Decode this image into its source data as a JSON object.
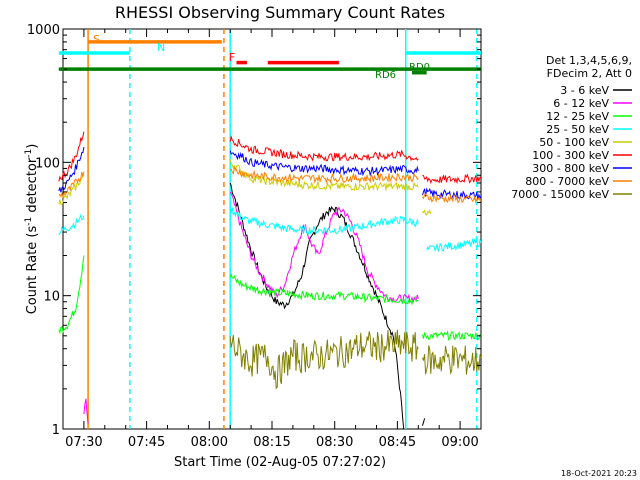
{
  "chart_data": {
    "type": "line",
    "title": "RHESSI Observing Summary Count Rates",
    "xlabel": "Start Time (02-Aug-05 07:27:02)",
    "ylabel_main": "Count Rate (s",
    "ylabel_sup1": "-1",
    "ylabel_mid": " detector",
    "ylabel_sup2": "-1",
    "ylabel_end": ")",
    "ylog": true,
    "ylim": [
      1,
      1000
    ],
    "xlim_min": [
      445,
      545
    ],
    "x_tick_minutes": [
      450,
      465,
      480,
      495,
      510,
      525,
      540
    ],
    "x_tick_labels": [
      "07:30",
      "07:45",
      "08:00",
      "08:15",
      "08:30",
      "08:45",
      "09:00"
    ],
    "y_tick_values": [
      1,
      10,
      100,
      1000
    ],
    "y_tick_labels": [
      "1",
      "10",
      "100",
      "1000"
    ],
    "legend_header": [
      "Det 1,3,4,5,6,9,",
      "FDecim 2, Att 0"
    ],
    "series": [
      {
        "name": "3 - 6 keV",
        "color": "#000000",
        "segments": [
          [
            [
              485,
              70
            ],
            [
              488,
              35
            ],
            [
              490,
              22
            ],
            [
              492,
              15
            ],
            [
              494,
              11
            ],
            [
              496,
              9
            ],
            [
              498,
              8.5
            ],
            [
              500,
              10
            ],
            [
              502,
              14
            ],
            [
              504,
              25
            ],
            [
              506,
              35
            ],
            [
              508,
              42
            ],
            [
              510,
              45
            ],
            [
              512,
              38
            ],
            [
              514,
              28
            ],
            [
              516,
              20
            ],
            [
              518,
              14
            ],
            [
              520,
              10
            ],
            [
              522,
              7
            ],
            [
              524,
              5
            ],
            [
              525,
              3
            ],
            [
              526,
              1.5
            ],
            [
              526.5,
              1
            ]
          ],
          [
            [
              531,
              1
            ],
            [
              531.5,
              1.2
            ]
          ]
        ]
      },
      {
        "name": "6 - 12 keV",
        "color": "#ff00ff",
        "segments": [
          [
            [
              450,
              1.3
            ],
            [
              450.5,
              1.6
            ],
            [
              451,
              1.1
            ]
          ],
          [
            [
              485,
              60
            ],
            [
              488,
              30
            ],
            [
              490,
              20
            ],
            [
              492,
              15
            ],
            [
              494,
              12
            ],
            [
              496,
              10
            ],
            [
              498,
              12
            ],
            [
              500,
              20
            ],
            [
              502,
              30
            ],
            [
              503,
              34
            ],
            [
              504,
              26
            ],
            [
              506,
              20
            ],
            [
              508,
              30
            ],
            [
              510,
              42
            ],
            [
              512,
              44
            ],
            [
              514,
              35
            ],
            [
              516,
              24
            ],
            [
              518,
              15
            ],
            [
              520,
              12
            ],
            [
              522,
              10
            ],
            [
              524,
              9.5
            ],
            [
              526,
              9.5
            ],
            [
              528,
              9.5
            ],
            [
              530,
              9.5
            ]
          ]
        ]
      },
      {
        "name": "12 - 25 keV",
        "color": "#00ff00",
        "segments": [
          [
            [
              444,
              5.5
            ],
            [
              446,
              6
            ],
            [
              448,
              8
            ],
            [
              449,
              12
            ],
            [
              450,
              20
            ]
          ],
          [
            [
              485,
              14
            ],
            [
              488,
              12
            ],
            [
              492,
              11
            ],
            [
              496,
              10.5
            ],
            [
              500,
              10.3
            ],
            [
              504,
              10
            ],
            [
              508,
              10
            ],
            [
              512,
              10
            ],
            [
              516,
              9.8
            ],
            [
              520,
              9.5
            ],
            [
              524,
              9.4
            ],
            [
              528,
              9.2
            ],
            [
              530,
              9.2
            ]
          ],
          [
            [
              531,
              5
            ],
            [
              534,
              5
            ],
            [
              540,
              5
            ],
            [
              545,
              5
            ]
          ]
        ]
      },
      {
        "name": "25 - 50 keV",
        "color": "#00ffff",
        "segments": [
          [
            [
              444,
              30
            ],
            [
              446,
              32
            ],
            [
              448,
              35
            ],
            [
              450,
              40
            ]
          ],
          [
            [
              485,
              45
            ],
            [
              488,
              38
            ],
            [
              490,
              36
            ],
            [
              494,
              34
            ],
            [
              498,
              32
            ],
            [
              502,
              31
            ],
            [
              506,
              31
            ],
            [
              510,
              31
            ],
            [
              514,
              32
            ],
            [
              518,
              34
            ],
            [
              522,
              36
            ],
            [
              526,
              37
            ],
            [
              528,
              36
            ],
            [
              530,
              35
            ]
          ],
          [
            [
              532,
              22
            ],
            [
              535,
              23
            ],
            [
              540,
              24
            ],
            [
              545,
              25
            ]
          ]
        ]
      },
      {
        "name": "50 - 100 keV",
        "color": "#cccc00",
        "segments": [
          [
            [
              444,
              50
            ],
            [
              446,
              55
            ],
            [
              448,
              65
            ],
            [
              450,
              80
            ]
          ],
          [
            [
              485,
              100
            ],
            [
              488,
              85
            ],
            [
              490,
              76
            ],
            [
              494,
              72
            ],
            [
              498,
              70
            ],
            [
              502,
              68
            ],
            [
              506,
              67
            ],
            [
              510,
              66
            ],
            [
              514,
              66
            ],
            [
              518,
              66
            ],
            [
              522,
              66
            ],
            [
              526,
              66
            ],
            [
              528,
              66
            ],
            [
              530,
              65
            ]
          ],
          [
            [
              531,
              42
            ],
            [
              532,
              40
            ],
            [
              533,
              41
            ]
          ]
        ]
      },
      {
        "name": "100 - 300 keV",
        "color": "#ff0000",
        "segments": [
          [
            [
              444,
              75
            ],
            [
              446,
              85
            ],
            [
              448,
              110
            ],
            [
              450,
              170
            ]
          ],
          [
            [
              485,
              150
            ],
            [
              488,
              135
            ],
            [
              490,
              125
            ],
            [
              494,
              120
            ],
            [
              498,
              115
            ],
            [
              502,
              112
            ],
            [
              506,
              110
            ],
            [
              510,
              110
            ],
            [
              514,
              110
            ],
            [
              518,
              110
            ],
            [
              522,
              112
            ],
            [
              526,
              115
            ],
            [
              528,
              110
            ],
            [
              530,
              106
            ]
          ],
          [
            [
              531,
              75
            ],
            [
              534,
              74
            ],
            [
              540,
              75
            ],
            [
              545,
              76
            ]
          ]
        ]
      },
      {
        "name": "300 - 800 keV",
        "color": "#0000ff",
        "segments": [
          [
            [
              444,
              60
            ],
            [
              446,
              70
            ],
            [
              448,
              90
            ],
            [
              450,
              130
            ]
          ],
          [
            [
              485,
              120
            ],
            [
              488,
              110
            ],
            [
              490,
              100
            ],
            [
              494,
              95
            ],
            [
              498,
              92
            ],
            [
              502,
              90
            ],
            [
              506,
              90
            ],
            [
              510,
              88
            ],
            [
              514,
              87
            ],
            [
              518,
              86
            ],
            [
              522,
              87
            ],
            [
              526,
              89
            ],
            [
              528,
              88
            ],
            [
              530,
              86
            ]
          ],
          [
            [
              531,
              60
            ],
            [
              534,
              58
            ],
            [
              540,
              57
            ],
            [
              545,
              56
            ]
          ]
        ]
      },
      {
        "name": "800 - 7000 keV",
        "color": "#ff8000",
        "segments": [
          [
            [
              444,
              55
            ],
            [
              446,
              60
            ],
            [
              448,
              70
            ],
            [
              450,
              85
            ]
          ],
          [
            [
              485,
              90
            ],
            [
              488,
              83
            ],
            [
              490,
              80
            ],
            [
              494,
              78
            ],
            [
              498,
              77
            ],
            [
              502,
              76
            ],
            [
              506,
              76
            ],
            [
              510,
              76
            ],
            [
              514,
              76
            ],
            [
              518,
              76
            ],
            [
              522,
              77
            ],
            [
              526,
              78
            ],
            [
              528,
              77
            ],
            [
              530,
              76
            ]
          ],
          [
            [
              531,
              55
            ],
            [
              534,
              54
            ],
            [
              540,
              53
            ],
            [
              545,
              52
            ]
          ]
        ]
      },
      {
        "name": "7000 - 15000 keV",
        "color": "#808000",
        "segments": [
          [
            [
              485,
              4.5
            ],
            [
              487,
              3.8
            ],
            [
              490,
              3.2
            ],
            [
              492,
              3.4
            ],
            [
              494,
              3.5
            ],
            [
              496,
              2.6
            ],
            [
              498,
              3
            ],
            [
              500,
              3.6
            ],
            [
              502,
              3.4
            ],
            [
              504,
              3.6
            ],
            [
              506,
              3.5
            ],
            [
              508,
              3.6
            ],
            [
              510,
              3.7
            ],
            [
              512,
              3.8
            ],
            [
              514,
              3.9
            ],
            [
              516,
              4.2
            ],
            [
              518,
              4.2
            ],
            [
              520,
              4.1
            ],
            [
              522,
              4.2
            ],
            [
              524,
              4.2
            ],
            [
              526,
              4.3
            ],
            [
              528,
              4.1
            ],
            [
              530,
              4
            ]
          ],
          [
            [
              531,
              3.4
            ],
            [
              534,
              3.2
            ],
            [
              537,
              3.4
            ],
            [
              540,
              3.3
            ],
            [
              543,
              3.2
            ],
            [
              545,
              3.4
            ]
          ]
        ]
      }
    ],
    "annotations": [
      {
        "text": "S",
        "color": "#ff8000"
      },
      {
        "text": "N",
        "color": "#00ffff"
      },
      {
        "text": "F",
        "color": "#ff0000"
      },
      {
        "text": "RD0",
        "color": "#008000"
      },
      {
        "text": "RD6",
        "color": "#008000"
      }
    ],
    "flag_bars": [
      {
        "label": "S",
        "color": "#ff8000",
        "y": 800,
        "x": [
          451,
          483
        ]
      },
      {
        "label": "N",
        "color": "#00ffff",
        "y": 660,
        "x": [
          444,
          461
        ]
      },
      {
        "label": "N",
        "color": "#00ffff",
        "y": 660,
        "x": [
          527,
          545
        ]
      },
      {
        "label": "F",
        "color": "#ff0000",
        "y": 560,
        "x": [
          486.5,
          489
        ]
      },
      {
        "label": "F",
        "color": "#ff0000",
        "y": 560,
        "x": [
          494,
          511
        ]
      },
      {
        "label": "main",
        "color": "#008000",
        "y": 500,
        "x": [
          444,
          545
        ]
      },
      {
        "label": "RD6",
        "color": "#008000",
        "y": 470,
        "x": [
          528.5,
          532
        ]
      }
    ],
    "vertical_markers": [
      {
        "minute": 451,
        "color": "#ff8000",
        "dashed": false
      },
      {
        "minute": 461,
        "color": "#00ffff",
        "dashed": true
      },
      {
        "minute": 483.5,
        "color": "#ff8000",
        "dashed": true
      },
      {
        "minute": 485,
        "color": "#00ffff",
        "dashed": false
      },
      {
        "minute": 527,
        "color": "#00ffff",
        "dashed": false
      },
      {
        "minute": 544,
        "color": "#00ffff",
        "dashed": true
      }
    ],
    "timestamp": "18-Oct-2021 20:23"
  }
}
